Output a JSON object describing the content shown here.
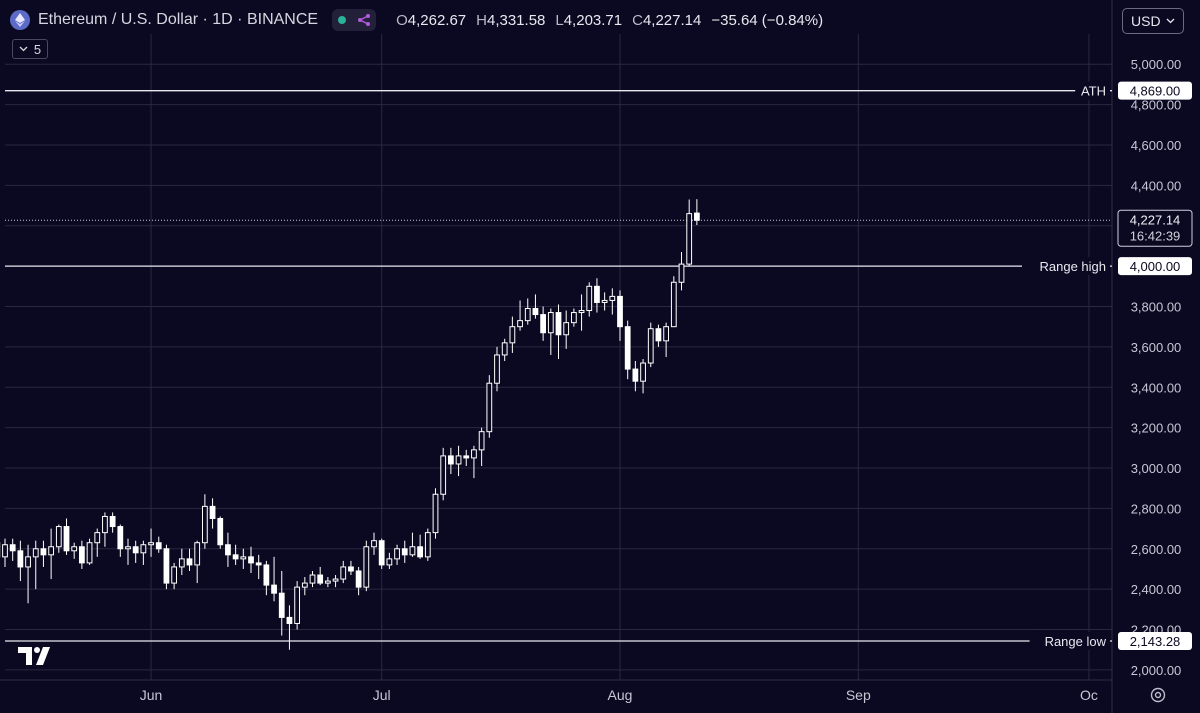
{
  "header": {
    "title": "Ethereum / U.S. Dollar · 1D · BINANCE",
    "ohlc": [
      {
        "key": "O",
        "value": "4,262.67"
      },
      {
        "key": "H",
        "value": "4,331.58"
      },
      {
        "key": "L",
        "value": "4,203.71"
      },
      {
        "key": "C",
        "value": "4,227.14"
      }
    ],
    "change": "−35.64 (−0.84%)",
    "indicator_count": "5",
    "currency": "USD"
  },
  "colors": {
    "background": "#0b0921",
    "grid": "#2a2840",
    "candle": "#ffffff",
    "status_dot": "#2bb39a",
    "share_icon": "#b45ae0"
  },
  "chart_data": {
    "type": "candlestick",
    "symbol": "ETHUSD",
    "timeframe": "1D",
    "ylim": [
      1950,
      5120
    ],
    "y_ticks": [
      "2,000.00",
      "2,200.00",
      "2,400.00",
      "2,600.00",
      "2,800.00",
      "3,000.00",
      "3,200.00",
      "3,400.00",
      "3,600.00",
      "3,800.00",
      "4,000.00",
      "4,200.00",
      "4,400.00",
      "4,600.00",
      "4,800.00",
      "5,000.00"
    ],
    "x_ticks": [
      {
        "label": "Jun",
        "day": 0
      },
      {
        "label": "Jul",
        "day": 30
      },
      {
        "label": "Aug",
        "day": 61
      },
      {
        "label": "Sep",
        "day": 92
      },
      {
        "label": "Oc",
        "day": 122
      }
    ],
    "x_start_day": -19,
    "x_end_day": 125,
    "candles": [
      {
        "o": 2560,
        "h": 2730,
        "l": 2460,
        "c": 2700
      },
      {
        "o": 2700,
        "h": 2740,
        "l": 2560,
        "c": 2630
      },
      {
        "o": 2630,
        "h": 2680,
        "l": 2540,
        "c": 2560
      },
      {
        "o": 2560,
        "h": 2650,
        "l": 2510,
        "c": 2620
      },
      {
        "o": 2620,
        "h": 2650,
        "l": 2540,
        "c": 2590
      },
      {
        "o": 2590,
        "h": 2640,
        "l": 2440,
        "c": 2510
      },
      {
        "o": 2510,
        "h": 2620,
        "l": 2330,
        "c": 2560
      },
      {
        "o": 2560,
        "h": 2640,
        "l": 2400,
        "c": 2600
      },
      {
        "o": 2600,
        "h": 2640,
        "l": 2510,
        "c": 2570
      },
      {
        "o": 2570,
        "h": 2700,
        "l": 2450,
        "c": 2610
      },
      {
        "o": 2610,
        "h": 2720,
        "l": 2580,
        "c": 2710
      },
      {
        "o": 2710,
        "h": 2750,
        "l": 2570,
        "c": 2590
      },
      {
        "o": 2590,
        "h": 2630,
        "l": 2550,
        "c": 2610
      },
      {
        "o": 2610,
        "h": 2640,
        "l": 2500,
        "c": 2530
      },
      {
        "o": 2530,
        "h": 2650,
        "l": 2520,
        "c": 2630
      },
      {
        "o": 2630,
        "h": 2700,
        "l": 2560,
        "c": 2680
      },
      {
        "o": 2680,
        "h": 2780,
        "l": 2610,
        "c": 2760
      },
      {
        "o": 2760,
        "h": 2780,
        "l": 2680,
        "c": 2710
      },
      {
        "o": 2710,
        "h": 2720,
        "l": 2560,
        "c": 2600
      },
      {
        "o": 2600,
        "h": 2650,
        "l": 2520,
        "c": 2610
      },
      {
        "o": 2610,
        "h": 2640,
        "l": 2530,
        "c": 2580
      },
      {
        "o": 2580,
        "h": 2640,
        "l": 2520,
        "c": 2620
      },
      {
        "o": 2620,
        "h": 2700,
        "l": 2560,
        "c": 2630
      },
      {
        "o": 2630,
        "h": 2660,
        "l": 2580,
        "c": 2600
      },
      {
        "o": 2600,
        "h": 2620,
        "l": 2400,
        "c": 2430
      },
      {
        "o": 2430,
        "h": 2530,
        "l": 2400,
        "c": 2510
      },
      {
        "o": 2510,
        "h": 2600,
        "l": 2470,
        "c": 2550
      },
      {
        "o": 2550,
        "h": 2600,
        "l": 2490,
        "c": 2520
      },
      {
        "o": 2520,
        "h": 2640,
        "l": 2430,
        "c": 2630
      },
      {
        "o": 2630,
        "h": 2870,
        "l": 2600,
        "c": 2810
      },
      {
        "o": 2810,
        "h": 2850,
        "l": 2700,
        "c": 2750
      },
      {
        "o": 2750,
        "h": 2760,
        "l": 2600,
        "c": 2620
      },
      {
        "o": 2620,
        "h": 2680,
        "l": 2510,
        "c": 2570
      },
      {
        "o": 2570,
        "h": 2620,
        "l": 2520,
        "c": 2550
      },
      {
        "o": 2550,
        "h": 2600,
        "l": 2500,
        "c": 2560
      },
      {
        "o": 2560,
        "h": 2610,
        "l": 2480,
        "c": 2530
      },
      {
        "o": 2530,
        "h": 2570,
        "l": 2450,
        "c": 2520
      },
      {
        "o": 2520,
        "h": 2540,
        "l": 2370,
        "c": 2420
      },
      {
        "o": 2420,
        "h": 2560,
        "l": 2340,
        "c": 2380
      },
      {
        "o": 2380,
        "h": 2490,
        "l": 2170,
        "c": 2260
      },
      {
        "o": 2260,
        "h": 2320,
        "l": 2100,
        "c": 2230
      },
      {
        "o": 2230,
        "h": 2440,
        "l": 2200,
        "c": 2410
      },
      {
        "o": 2410,
        "h": 2460,
        "l": 2370,
        "c": 2430
      },
      {
        "o": 2430,
        "h": 2490,
        "l": 2410,
        "c": 2470
      },
      {
        "o": 2470,
        "h": 2510,
        "l": 2420,
        "c": 2430
      },
      {
        "o": 2430,
        "h": 2460,
        "l": 2410,
        "c": 2440
      },
      {
        "o": 2440,
        "h": 2470,
        "l": 2410,
        "c": 2450
      },
      {
        "o": 2450,
        "h": 2540,
        "l": 2430,
        "c": 2510
      },
      {
        "o": 2510,
        "h": 2540,
        "l": 2470,
        "c": 2490
      },
      {
        "o": 2490,
        "h": 2510,
        "l": 2370,
        "c": 2410
      },
      {
        "o": 2410,
        "h": 2640,
        "l": 2390,
        "c": 2610
      },
      {
        "o": 2610,
        "h": 2680,
        "l": 2570,
        "c": 2640
      },
      {
        "o": 2640,
        "h": 2650,
        "l": 2500,
        "c": 2520
      },
      {
        "o": 2520,
        "h": 2580,
        "l": 2500,
        "c": 2550
      },
      {
        "o": 2550,
        "h": 2620,
        "l": 2520,
        "c": 2600
      },
      {
        "o": 2600,
        "h": 2640,
        "l": 2530,
        "c": 2570
      },
      {
        "o": 2570,
        "h": 2680,
        "l": 2560,
        "c": 2610
      },
      {
        "o": 2610,
        "h": 2670,
        "l": 2550,
        "c": 2560
      },
      {
        "o": 2560,
        "h": 2700,
        "l": 2540,
        "c": 2680
      },
      {
        "o": 2680,
        "h": 2900,
        "l": 2650,
        "c": 2870
      },
      {
        "o": 2870,
        "h": 3100,
        "l": 2840,
        "c": 3060
      },
      {
        "o": 3060,
        "h": 3100,
        "l": 2970,
        "c": 3020
      },
      {
        "o": 3020,
        "h": 3110,
        "l": 2960,
        "c": 3060
      },
      {
        "o": 3060,
        "h": 3090,
        "l": 3010,
        "c": 3050
      },
      {
        "o": 3050,
        "h": 3110,
        "l": 2950,
        "c": 3090
      },
      {
        "o": 3090,
        "h": 3200,
        "l": 3010,
        "c": 3180
      },
      {
        "o": 3180,
        "h": 3460,
        "l": 3150,
        "c": 3420
      },
      {
        "o": 3420,
        "h": 3600,
        "l": 3380,
        "c": 3560
      },
      {
        "o": 3560,
        "h": 3640,
        "l": 3530,
        "c": 3620
      },
      {
        "o": 3620,
        "h": 3750,
        "l": 3570,
        "c": 3700
      },
      {
        "o": 3700,
        "h": 3830,
        "l": 3680,
        "c": 3730
      },
      {
        "o": 3730,
        "h": 3840,
        "l": 3710,
        "c": 3790
      },
      {
        "o": 3790,
        "h": 3860,
        "l": 3740,
        "c": 3760
      },
      {
        "o": 3760,
        "h": 3800,
        "l": 3630,
        "c": 3670
      },
      {
        "o": 3670,
        "h": 3790,
        "l": 3560,
        "c": 3770
      },
      {
        "o": 3770,
        "h": 3810,
        "l": 3540,
        "c": 3660
      },
      {
        "o": 3660,
        "h": 3780,
        "l": 3590,
        "c": 3720
      },
      {
        "o": 3720,
        "h": 3790,
        "l": 3700,
        "c": 3770
      },
      {
        "o": 3770,
        "h": 3860,
        "l": 3680,
        "c": 3780
      },
      {
        "o": 3780,
        "h": 3920,
        "l": 3750,
        "c": 3900
      },
      {
        "o": 3900,
        "h": 3940,
        "l": 3770,
        "c": 3820
      },
      {
        "o": 3820,
        "h": 3870,
        "l": 3780,
        "c": 3830
      },
      {
        "o": 3830,
        "h": 3890,
        "l": 3760,
        "c": 3850
      },
      {
        "o": 3850,
        "h": 3880,
        "l": 3630,
        "c": 3700
      },
      {
        "o": 3700,
        "h": 3730,
        "l": 3440,
        "c": 3490
      },
      {
        "o": 3490,
        "h": 3530,
        "l": 3380,
        "c": 3430
      },
      {
        "o": 3430,
        "h": 3540,
        "l": 3370,
        "c": 3520
      },
      {
        "o": 3520,
        "h": 3720,
        "l": 3500,
        "c": 3690
      },
      {
        "o": 3690,
        "h": 3710,
        "l": 3600,
        "c": 3630
      },
      {
        "o": 3630,
        "h": 3720,
        "l": 3550,
        "c": 3700
      },
      {
        "o": 3700,
        "h": 3950,
        "l": 3700,
        "c": 3920
      },
      {
        "o": 3920,
        "h": 4070,
        "l": 3880,
        "c": 4010
      },
      {
        "o": 4010,
        "h": 4330,
        "l": 4000,
        "c": 4260
      },
      {
        "o": 4262.67,
        "h": 4331.58,
        "l": 4203.71,
        "c": 4227.14
      }
    ],
    "levels": [
      {
        "label": "ATH",
        "value": "4,869.00",
        "y": 4869,
        "style": "solid"
      },
      {
        "label": "Range high",
        "value": "4,000.00",
        "y": 4000,
        "style": "solid"
      },
      {
        "label": "Range low",
        "value": "2,143.28",
        "y": 2143.28,
        "style": "solid"
      }
    ],
    "current_price": {
      "value": "4,227.14",
      "y": 4227.14,
      "countdown": "16:42:39"
    }
  }
}
